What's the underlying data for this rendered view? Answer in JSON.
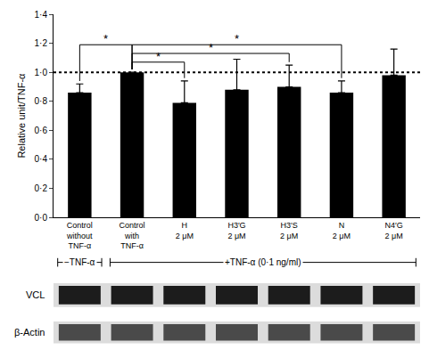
{
  "chart_data": {
    "type": "bar",
    "y_label": "Relative unit/TNF-α",
    "categories": [
      "Control\nwithout\nTNF-α",
      "Control\nwith\nTNF-α",
      "H\n2 μM",
      "H3′G\n2 μM",
      "H3′S\n2 μM",
      "N\n2 μM",
      "N4′G\n2 μM"
    ],
    "values": [
      0.86,
      1.0,
      0.79,
      0.88,
      0.9,
      0.86,
      0.98
    ],
    "errors": [
      0.06,
      0,
      0.15,
      0.21,
      0.15,
      0.08,
      0.18
    ],
    "color": "#000000",
    "ylim": [
      0,
      1.4
    ],
    "yticks": [
      {
        "value": 0,
        "label": "0·0"
      },
      {
        "value": 0.2,
        "label": "0·2"
      },
      {
        "value": 0.4,
        "label": "0·4"
      },
      {
        "value": 0.6,
        "label": "0·6"
      },
      {
        "value": 0.8,
        "label": "0·8"
      },
      {
        "value": 1.0,
        "label": "1·0"
      },
      {
        "value": 1.2,
        "label": "1·2"
      },
      {
        "value": 1.4,
        "label": "1·4"
      }
    ],
    "grid": false,
    "reference_line": 1.0,
    "significance": [
      {
        "from": 0,
        "to": 1,
        "y": 1.19,
        "label": "*"
      },
      {
        "from": 1,
        "to": 2,
        "y": 1.07,
        "label": "*"
      },
      {
        "from": 1,
        "to": 4,
        "y": 1.13,
        "label": "*"
      },
      {
        "from": 1,
        "to": 5,
        "y": 1.19,
        "label": "*"
      }
    ],
    "groups": [
      {
        "label": "−TNF-α",
        "from": 0,
        "to": 0
      },
      {
        "label": "+TNF-α (0·1 ng/ml)",
        "from": 1,
        "to": 6
      }
    ]
  },
  "blot": {
    "rows": [
      {
        "label": "VCL"
      },
      {
        "label": "β-Actin"
      }
    ]
  }
}
